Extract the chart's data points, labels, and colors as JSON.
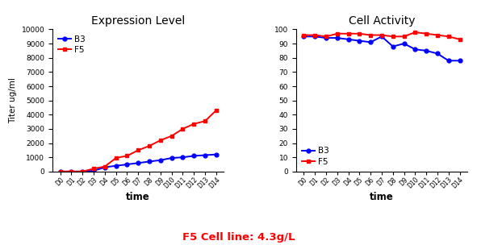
{
  "days": [
    "D0",
    "D1",
    "D2",
    "D3",
    "D4",
    "D5",
    "D6",
    "D7",
    "D8",
    "D9",
    "D10",
    "D11",
    "D12",
    "D13",
    "D14"
  ],
  "expr_B3": [
    0,
    0,
    0,
    50,
    300,
    400,
    500,
    600,
    700,
    800,
    950,
    1000,
    1100,
    1150,
    1200
  ],
  "expr_F5": [
    0,
    0,
    0,
    200,
    350,
    950,
    1100,
    1500,
    1800,
    2200,
    2500,
    3000,
    3350,
    3550,
    4300
  ],
  "activity_B3": [
    95,
    95,
    94,
    94,
    93,
    92,
    91,
    95,
    88,
    90,
    86,
    85,
    83,
    78,
    78
  ],
  "activity_F5": [
    96,
    96,
    95,
    97,
    97,
    97,
    96,
    96,
    95,
    95,
    98,
    97,
    96,
    95,
    93
  ],
  "color_B3": "#0000FF",
  "color_F5": "#FF0000",
  "title_expr": "Expression Level",
  "title_act": "Cell Activity",
  "ylabel_expr": "Titer ug/ml",
  "xlabel": "time",
  "ylim_expr": [
    0,
    10000
  ],
  "yticks_expr": [
    0,
    1000,
    2000,
    3000,
    4000,
    5000,
    6000,
    7000,
    8000,
    9000,
    10000
  ],
  "ylim_act": [
    0,
    100
  ],
  "yticks_act": [
    0,
    10,
    20,
    30,
    40,
    50,
    60,
    70,
    80,
    90,
    100
  ],
  "footer_text": "F5 Cell line: 4.3g/L",
  "footer_color": "#FF0000",
  "bg_color": "#FFFFFF"
}
